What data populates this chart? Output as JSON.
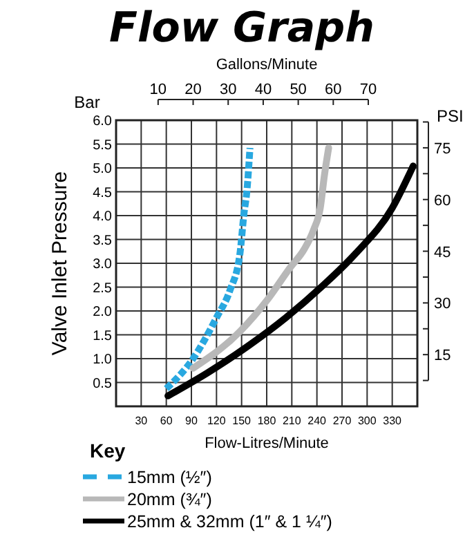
{
  "chart_data": {
    "type": "line",
    "title": "Flow Graph",
    "xlabel": "Flow-Litres/Minute",
    "x2label": "Gallons/Minute",
    "ylabel": "Valve Inlet Pressure",
    "y2label": "PSI",
    "legend_title": "Key",
    "annotations": [
      "Bar"
    ],
    "xlim": [
      0,
      360
    ],
    "xticks": [
      30,
      60,
      90,
      120,
      150,
      180,
      210,
      240,
      270,
      300,
      330
    ],
    "x2lim": [
      -2,
      84
    ],
    "x2ticks": [
      10,
      20,
      30,
      40,
      50,
      60,
      70
    ],
    "ylim": [
      0,
      6
    ],
    "yticks": [
      {
        "value": 0.5,
        "label": "0.5"
      },
      {
        "value": 1,
        "label": "1.0"
      },
      {
        "value": 1.5,
        "label": "1.5"
      },
      {
        "value": 2,
        "label": "2.0"
      },
      {
        "value": 2.5,
        "label": "2.5"
      },
      {
        "value": 3,
        "label": "3.0"
      },
      {
        "value": 3.5,
        "label": "3.5"
      },
      {
        "value": 4,
        "label": "4.0"
      },
      {
        "value": 4.5,
        "label": "4.5"
      },
      {
        "value": 5,
        "label": "5.0"
      },
      {
        "value": 5.5,
        "label": "5.5"
      },
      {
        "value": 6,
        "label": "6.0"
      }
    ],
    "y2lim": [
      0,
      83
    ],
    "y2ticks": [
      {
        "value": 7.5,
        "label": null
      },
      15,
      {
        "value": 22.5,
        "label": null
      },
      30,
      {
        "value": 37.5,
        "label": null
      },
      45,
      {
        "value": 52.5,
        "label": null
      },
      60,
      {
        "value": 67.5,
        "label": null
      },
      75,
      {
        "value": 82.5,
        "label": null
      }
    ],
    "grid": true,
    "legend": "bottom left",
    "series": [
      {
        "name": "15mm (½″)",
        "color": "#29a8e0",
        "line_style": "dashed",
        "x": [
          60,
          92,
          120,
          136,
          148,
          153,
          156,
          160
        ],
        "values": [
          0.37,
          1.0,
          1.86,
          2.43,
          3.2,
          4.07,
          4.46,
          5.42
        ]
      },
      {
        "name": "20mm (¾″)",
        "color": "#b8b8b8",
        "line_style": "solid",
        "x": [
          92,
          148,
          181,
          208,
          225,
          236,
          244,
          249,
          254
        ],
        "values": [
          0.8,
          1.57,
          2.24,
          2.91,
          3.3,
          3.7,
          4.16,
          4.85,
          5.42
        ]
      },
      {
        "name": "25mm & 32mm (1″ & 1 ¼″)",
        "color": "#000000",
        "line_style": "solid",
        "x": [
          62,
          109,
          159,
          203,
          247,
          286,
          330,
          355
        ],
        "values": [
          0.22,
          0.7,
          1.28,
          1.86,
          2.53,
          3.2,
          4.16,
          5.04
        ]
      }
    ]
  }
}
